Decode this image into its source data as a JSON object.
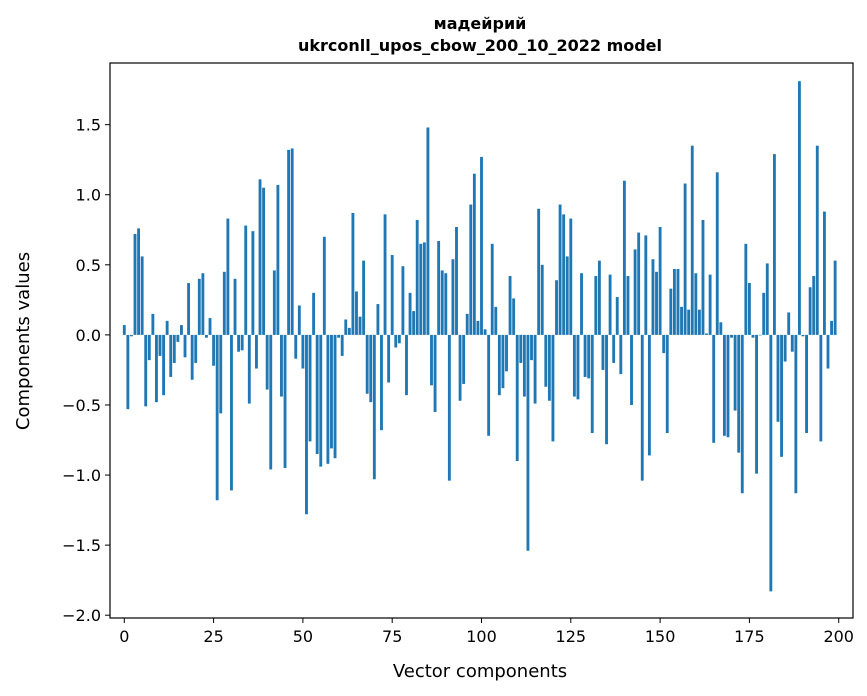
{
  "chart_data": {
    "type": "bar",
    "title_lines": [
      "мадейрий",
      "ukrconll_upos_cbow_200_10_2022 model"
    ],
    "xlabel": "Vector components",
    "ylabel": "Components values",
    "xlim": [
      -4,
      204
    ],
    "ylim": [
      -2.02,
      1.94
    ],
    "xticks": [
      0,
      25,
      50,
      75,
      100,
      125,
      150,
      175,
      200
    ],
    "xtick_labels": [
      "0",
      "25",
      "50",
      "75",
      "100",
      "125",
      "150",
      "175",
      "200"
    ],
    "yticks": [
      -2.0,
      -1.5,
      -1.0,
      -0.5,
      0.0,
      0.5,
      1.0,
      1.5
    ],
    "ytick_labels": [
      "−2.0",
      "−1.5",
      "−1.0",
      "−0.5",
      "0.0",
      "0.5",
      "1.0",
      "1.5"
    ],
    "bar_color": "#1f77b4",
    "values": [
      0.07,
      -0.53,
      -0.01,
      0.72,
      0.76,
      0.56,
      -0.51,
      -0.18,
      0.15,
      -0.48,
      -0.15,
      -0.43,
      0.1,
      -0.3,
      -0.2,
      -0.05,
      0.07,
      -0.16,
      0.37,
      -0.32,
      -0.2,
      0.4,
      0.44,
      -0.02,
      0.12,
      -0.22,
      -1.18,
      -0.56,
      0.45,
      0.83,
      -1.11,
      0.4,
      -0.12,
      -0.11,
      0.78,
      -0.49,
      0.74,
      -0.24,
      1.11,
      1.05,
      -0.39,
      -0.96,
      0.46,
      1.07,
      -0.44,
      -0.95,
      1.32,
      1.33,
      -0.17,
      0.21,
      -0.24,
      -1.28,
      -0.76,
      0.3,
      -0.85,
      -0.94,
      0.7,
      -0.92,
      -0.81,
      -0.88,
      -0.02,
      -0.15,
      0.11,
      0.05,
      0.87,
      0.31,
      0.13,
      0.53,
      -0.42,
      -0.48,
      -1.03,
      0.22,
      -0.68,
      0.86,
      -0.34,
      0.57,
      -0.09,
      -0.06,
      0.49,
      -0.43,
      0.3,
      0.17,
      0.82,
      0.65,
      0.66,
      1.48,
      -0.36,
      -0.55,
      0.67,
      0.46,
      0.44,
      -1.04,
      0.54,
      0.77,
      -0.47,
      -0.35,
      0.15,
      0.93,
      1.15,
      0.1,
      1.27,
      0.04,
      -0.72,
      0.65,
      0.2,
      -0.43,
      -0.38,
      -0.26,
      0.42,
      0.26,
      -0.9,
      -0.2,
      -0.44,
      -1.54,
      -0.18,
      -0.49,
      0.9,
      0.5,
      -0.37,
      -0.47,
      -0.76,
      0.39,
      0.93,
      0.86,
      0.56,
      0.83,
      -0.44,
      -0.46,
      0.44,
      -0.3,
      -0.31,
      -0.7,
      0.42,
      0.53,
      -0.25,
      -0.78,
      0.43,
      -0.2,
      0.27,
      -0.28,
      1.1,
      0.42,
      -0.5,
      0.61,
      0.73,
      -1.04,
      0.71,
      -0.86,
      0.54,
      0.45,
      0.77,
      -0.13,
      -0.7,
      0.33,
      0.47,
      0.47,
      0.2,
      1.08,
      0.18,
      1.35,
      0.44,
      0.18,
      0.82,
      0.01,
      0.43,
      -0.77,
      1.16,
      0.09,
      -0.72,
      -0.73,
      -0.02,
      -0.54,
      -0.84,
      -1.13,
      0.65,
      0.37,
      -0.02,
      -0.99,
      0.0,
      0.3,
      0.51,
      -1.83,
      1.29,
      -0.62,
      -0.87,
      -0.19,
      0.16,
      -0.12,
      -1.13,
      1.81,
      -0.01,
      -0.7,
      0.34,
      0.42,
      1.35,
      -0.76,
      0.88,
      -0.24,
      0.1,
      0.53
    ]
  }
}
